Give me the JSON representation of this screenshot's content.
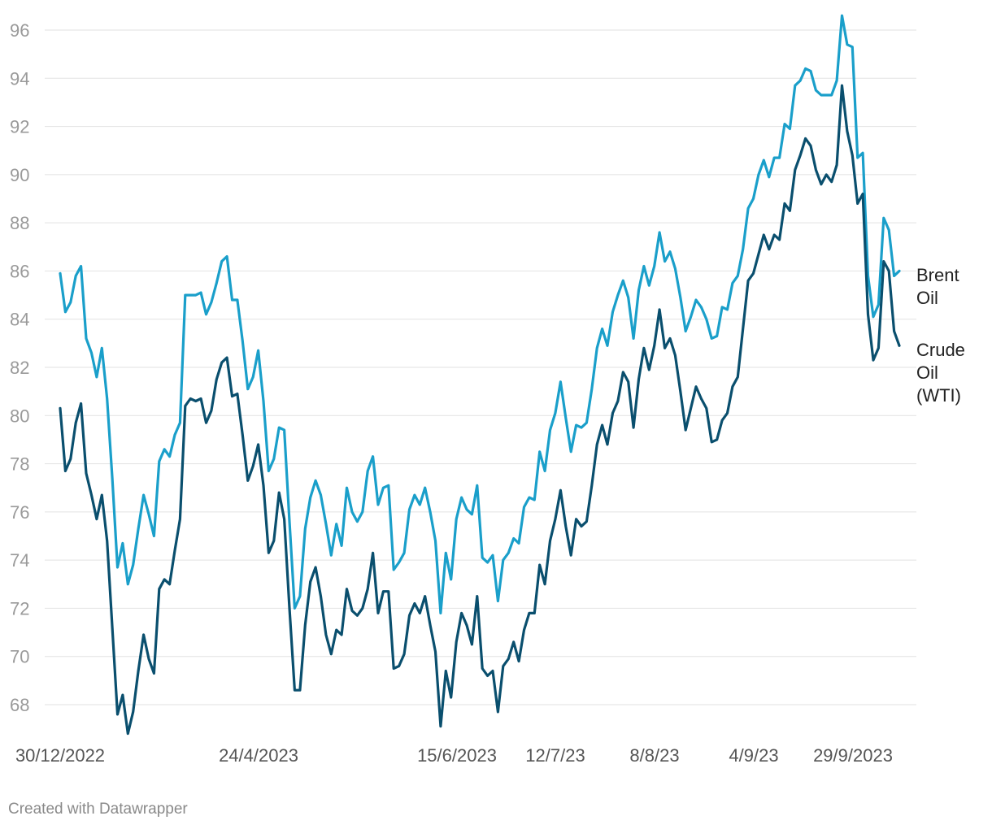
{
  "chart_data": {
    "type": "line",
    "title": "",
    "xlabel": "",
    "ylabel": "",
    "ylim": [
      67,
      96.6
    ],
    "yticks": [
      68,
      70,
      72,
      74,
      76,
      78,
      80,
      82,
      84,
      86,
      88,
      90,
      92,
      94,
      96
    ],
    "xticks": [
      "30/12/2022",
      "24/4/2023",
      "15/6/2023",
      "12/7/23",
      "8/8/23",
      "4/9/23",
      "29/9/2023"
    ],
    "grid": true,
    "legend": "direct-labels-right",
    "series": [
      {
        "name": "Brent Oil",
        "label_lines": [
          "Brent",
          "Oil"
        ],
        "color": "#1a9fca",
        "values": [
          85.9,
          84.3,
          84.7,
          85.8,
          86.2,
          83.2,
          82.6,
          81.6,
          82.8,
          80.7,
          77.4,
          73.7,
          74.7,
          73.0,
          73.8,
          75.3,
          76.7,
          75.9,
          75.0,
          78.1,
          78.6,
          78.3,
          79.2,
          79.7,
          85.0,
          85.0,
          85.0,
          85.1,
          84.2,
          84.7,
          85.5,
          86.4,
          86.6,
          84.8,
          84.8,
          83.1,
          81.1,
          81.6,
          82.7,
          80.6,
          77.7,
          78.2,
          79.5,
          79.4,
          75.6,
          72.0,
          72.5,
          75.3,
          76.6,
          77.3,
          76.7,
          75.5,
          74.2,
          75.5,
          74.6,
          77.0,
          76.0,
          75.6,
          76.0,
          77.7,
          78.3,
          76.3,
          77.0,
          77.1,
          73.6,
          73.9,
          74.3,
          76.1,
          76.7,
          76.3,
          77.0,
          76.0,
          74.8,
          71.8,
          74.3,
          73.2,
          75.7,
          76.6,
          76.1,
          75.9,
          77.1,
          74.1,
          73.9,
          74.2,
          72.3,
          74.0,
          74.3,
          74.9,
          74.7,
          76.2,
          76.6,
          76.5,
          78.5,
          77.7,
          79.4,
          80.1,
          81.4,
          79.9,
          78.5,
          79.6,
          79.5,
          79.7,
          81.1,
          82.8,
          83.6,
          82.9,
          84.3,
          85.0,
          85.6,
          84.9,
          83.2,
          85.2,
          86.2,
          85.4,
          86.2,
          87.6,
          86.4,
          86.8,
          86.1,
          84.9,
          83.5,
          84.1,
          84.8,
          84.5,
          84.0,
          83.2,
          83.3,
          84.5,
          84.4,
          85.5,
          85.8,
          86.9,
          88.6,
          89.0,
          90.0,
          90.6,
          89.9,
          90.7,
          90.7,
          92.1,
          91.9,
          93.7,
          93.9,
          94.4,
          94.3,
          93.5,
          93.3,
          93.3,
          93.3,
          93.9,
          96.6,
          95.4,
          95.3,
          90.7,
          90.9,
          85.8,
          84.1,
          84.6,
          88.2,
          87.7,
          85.8,
          86.0
        ]
      },
      {
        "name": "Crude Oil (WTI)",
        "label_lines": [
          "Crude",
          "Oil",
          "(WTI)"
        ],
        "color": "#0a4f6e",
        "values": [
          80.3,
          77.7,
          78.2,
          79.7,
          80.5,
          77.6,
          76.7,
          75.7,
          76.7,
          74.8,
          71.2,
          67.6,
          68.4,
          66.8,
          67.7,
          69.4,
          70.9,
          69.9,
          69.3,
          72.8,
          73.2,
          73.0,
          74.4,
          75.7,
          80.4,
          80.7,
          80.6,
          80.7,
          79.7,
          80.2,
          81.5,
          82.2,
          82.4,
          80.8,
          80.9,
          79.2,
          77.3,
          77.9,
          78.8,
          77.1,
          74.3,
          74.8,
          76.8,
          75.7,
          72.0,
          68.6,
          68.6,
          71.3,
          73.1,
          73.7,
          72.5,
          70.9,
          70.1,
          71.1,
          70.9,
          72.8,
          71.9,
          71.7,
          72.0,
          72.8,
          74.3,
          71.8,
          72.7,
          72.7,
          69.5,
          69.6,
          70.1,
          71.7,
          72.2,
          71.8,
          72.5,
          71.3,
          70.2,
          67.1,
          69.4,
          68.3,
          70.6,
          71.8,
          71.3,
          70.5,
          72.5,
          69.5,
          69.2,
          69.4,
          67.7,
          69.6,
          69.9,
          70.6,
          69.8,
          71.1,
          71.8,
          71.8,
          73.8,
          73.0,
          74.8,
          75.7,
          76.9,
          75.4,
          74.2,
          75.7,
          75.4,
          75.6,
          77.1,
          78.8,
          79.6,
          78.8,
          80.1,
          80.6,
          81.8,
          81.4,
          79.5,
          81.5,
          82.8,
          81.9,
          82.9,
          84.4,
          82.8,
          83.2,
          82.5,
          81.0,
          79.4,
          80.3,
          81.2,
          80.7,
          80.3,
          78.9,
          79.0,
          79.8,
          80.1,
          81.2,
          81.6,
          83.6,
          85.6,
          85.9,
          86.7,
          87.5,
          86.9,
          87.5,
          87.3,
          88.8,
          88.5,
          90.2,
          90.8,
          91.5,
          91.2,
          90.2,
          89.6,
          90.0,
          89.7,
          90.4,
          93.7,
          91.8,
          90.8,
          88.8,
          89.2,
          84.2,
          82.3,
          82.8,
          86.4,
          86.0,
          83.5,
          82.9
        ]
      }
    ]
  },
  "footer": {
    "credit": "Created with Datawrapper"
  }
}
